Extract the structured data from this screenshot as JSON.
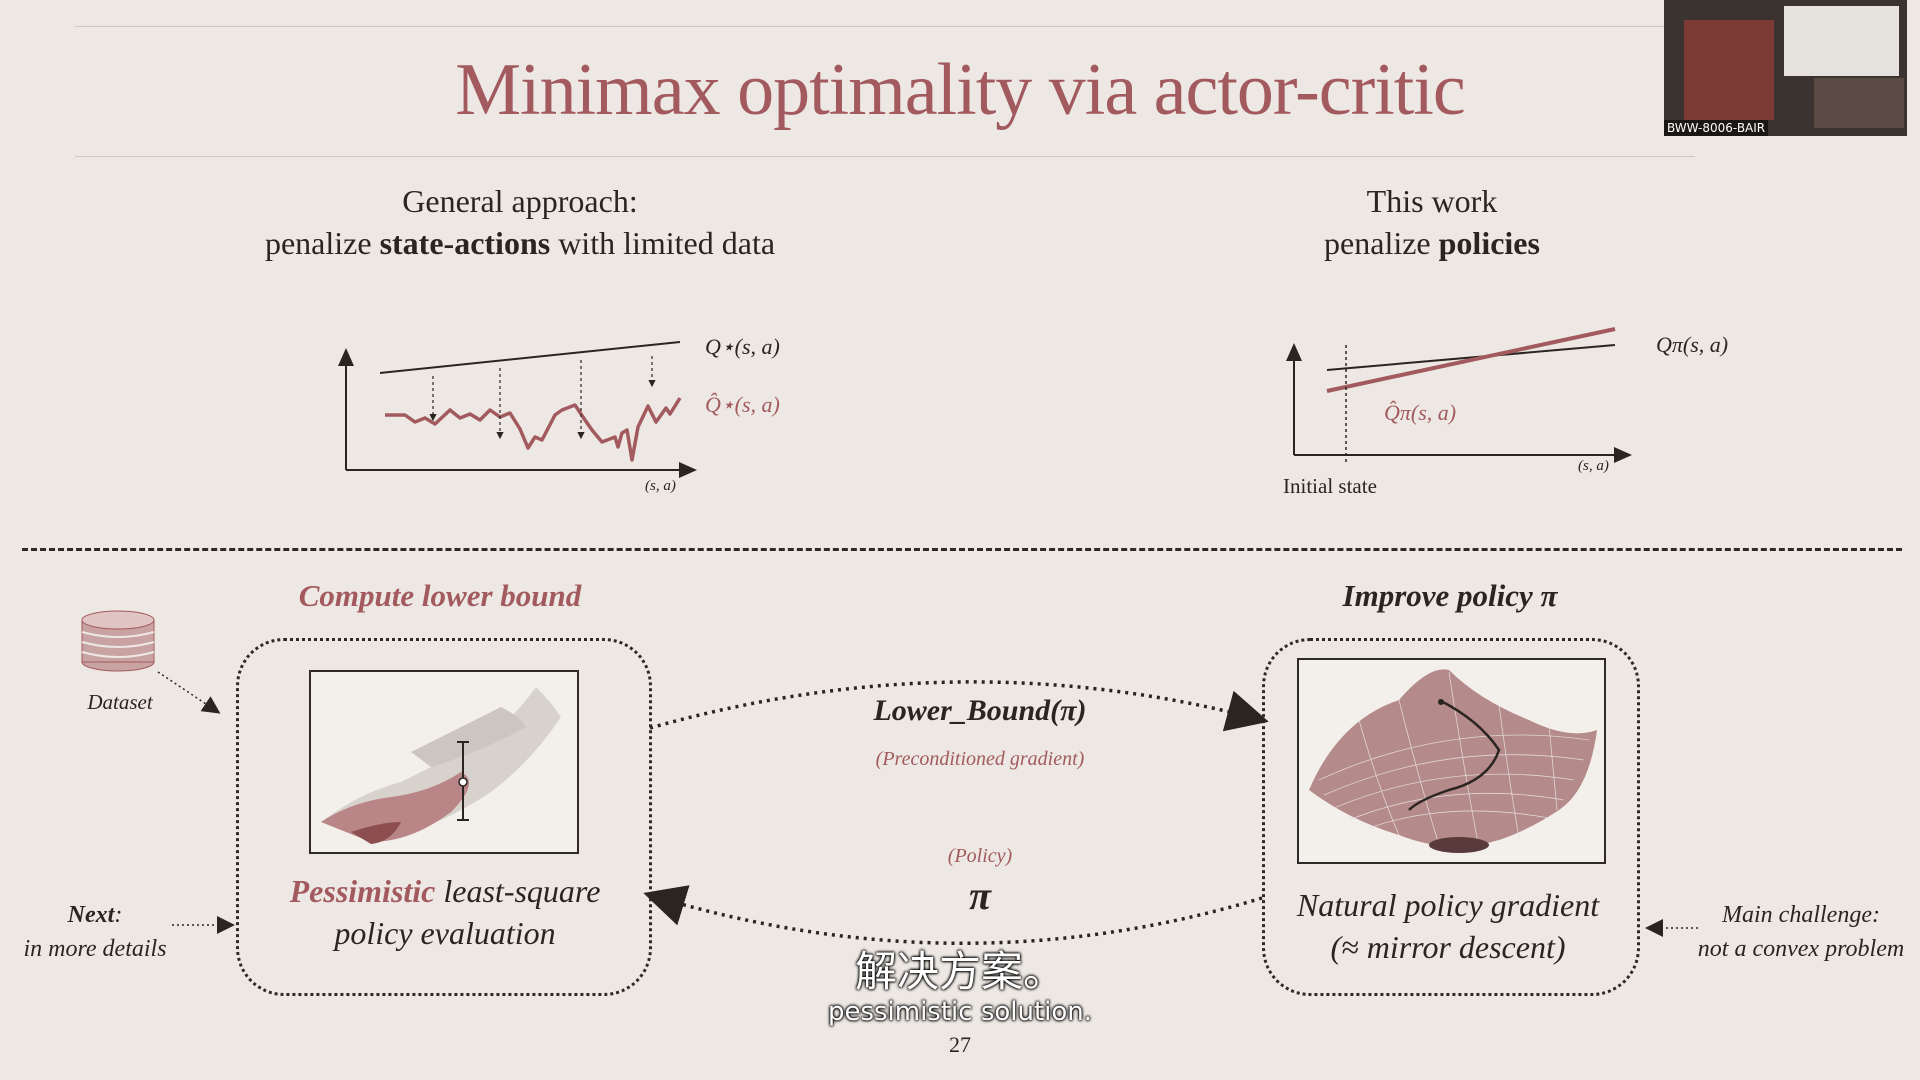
{
  "slide": {
    "title": "Minimax optimality via actor-critic",
    "page_number": "27"
  },
  "left_heading": {
    "line1": "General approach:",
    "line2_prefix": "penalize ",
    "line2_bold": "state-actions",
    "line2_suffix": " with limited data"
  },
  "right_heading": {
    "line1": "This work",
    "line2_prefix": "penalize ",
    "line2_bold": "policies"
  },
  "left_plot": {
    "label_q_star": "Q⋆(s, a)",
    "label_q_hat_star": "Q̂⋆(s, a)",
    "xlabel": "(s, a)"
  },
  "right_plot": {
    "label_q_pi": "Qπ(s, a)",
    "label_q_hat_pi": "Q̂π(s, a)",
    "xlabel": "(s, a)",
    "initial_state": "Initial state"
  },
  "flow": {
    "compute_lower_bound": "Compute lower bound",
    "improve_policy": "Improve policy π",
    "dataset": "Dataset",
    "lower_bound": "Lower_Bound(π)",
    "preconditioned": "(Preconditioned gradient)",
    "policy_label": "(Policy)",
    "pi": "π",
    "pess_accent": "Pessimistic",
    "pess_rest": " least-square",
    "pess_line2": "policy evaluation",
    "npg_line1": "Natural policy gradient",
    "npg_line2": "(≈ mirror descent)",
    "next_bold": "Next",
    "next_colon": ":",
    "next_line2": "in more details",
    "challenge_line1": "Main challenge:",
    "challenge_line2": "not a convex problem"
  },
  "subtitles": {
    "zh": "解决方案。",
    "en": "pessimistic solution."
  },
  "webcam": {
    "label": "BWW-8006-BAIR"
  },
  "colors": {
    "accent": "#a25a5e",
    "ink": "#2b2522",
    "background": "#ede8e3"
  }
}
